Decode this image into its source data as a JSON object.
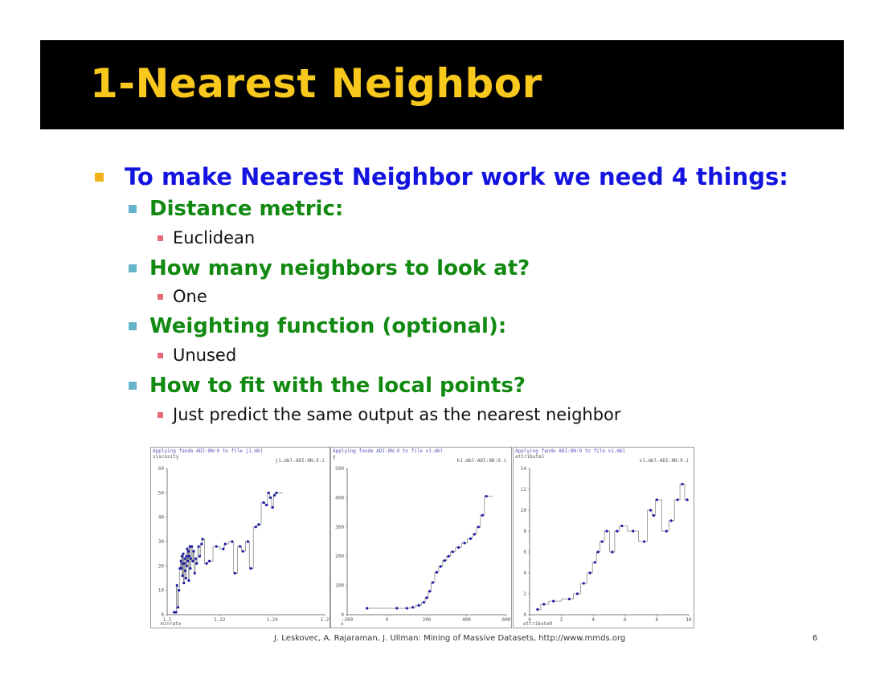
{
  "slide": {
    "title": "1-Nearest Neighbor",
    "main_bullet": "To make Nearest Neighbor work we need 4 things:",
    "items": [
      {
        "heading": "Distance metric:",
        "answer": "Euclidean"
      },
      {
        "heading": "How many neighbors to look at?",
        "answer": "One"
      },
      {
        "heading": "Weighting function (optional):",
        "answer": "Unused"
      },
      {
        "heading": "How to fit with the local points?",
        "answer": "Just predict the same output as the nearest neighbor"
      }
    ],
    "footer": {
      "source": "J. Leskovec, A. Rajaraman, J. Ullman: Mining of Massive Datasets, http://www.mmds.org",
      "page": "6"
    }
  },
  "colors": {
    "title_bg": "#000000",
    "title_text": "#f8c81c",
    "main_bullet": "#1414e0",
    "heading": "#128a12",
    "marker1": "#f2b21c",
    "marker2": "#66b4cc",
    "marker3": "#e86a78",
    "series_line": "#888888",
    "series_point": "#1a1aa8"
  },
  "chart_data": [
    {
      "type": "line",
      "title": "Applying fande ADI:8N:9 to file j1.mbl",
      "ylabel": "viscosity",
      "xlabel": "minrate",
      "legend": "j1.mbl-ADI:8N:9.i",
      "xlim": [
        1.2,
        1.28
      ],
      "ylim": [
        0,
        60
      ],
      "xticks": [
        "1.2",
        "1.22",
        "1.24",
        "1.2"
      ],
      "yticks": [
        "0",
        "10",
        "20",
        "30",
        "40",
        "50",
        "60"
      ],
      "x": [
        1.2035,
        1.2045,
        1.205,
        1.2055,
        1.206,
        1.2065,
        1.207,
        1.2072,
        1.2075,
        1.2078,
        1.208,
        1.2082,
        1.2085,
        1.2088,
        1.209,
        1.2092,
        1.2095,
        1.2098,
        1.21,
        1.2102,
        1.2105,
        1.2108,
        1.211,
        1.2112,
        1.2115,
        1.2118,
        1.212,
        1.2125,
        1.213,
        1.2135,
        1.214,
        1.2145,
        1.215,
        1.216,
        1.2165,
        1.2175,
        1.218,
        1.22,
        1.2215,
        1.225,
        1.2285,
        1.2295,
        1.233,
        1.2345,
        1.237,
        1.2385,
        1.241,
        1.2425,
        1.245,
        1.2465,
        1.249,
        1.2505,
        1.2515,
        1.2525,
        1.2535,
        1.2545,
        1.2555
      ],
      "y": [
        1,
        1,
        12,
        3,
        10,
        19,
        22,
        19,
        24,
        16,
        21,
        25,
        13,
        21,
        23,
        18,
        15,
        24,
        20,
        27,
        22,
        26,
        14,
        24,
        28,
        19,
        23,
        28,
        22,
        26,
        17,
        23,
        21,
        28,
        24,
        29,
        31,
        21,
        22,
        28,
        27,
        29,
        30,
        17,
        28,
        26,
        30,
        19,
        36,
        37,
        46,
        45,
        50,
        48,
        44,
        49,
        50
      ]
    },
    {
      "type": "line",
      "title": "Applying fande ADI:8N:9 to file x1.mbl",
      "ylabel": "y",
      "xlabel": "x",
      "legend": "k1.mbl-ADI:8N:9.i",
      "xlim": [
        -200,
        600
      ],
      "ylim": [
        0,
        500
      ],
      "xticks": [
        "-200",
        "0",
        "200",
        "400",
        "600"
      ],
      "yticks": [
        "0",
        "100",
        "200",
        "300",
        "400",
        "500"
      ],
      "x": [
        -100,
        50,
        100,
        130,
        160,
        185,
        200,
        215,
        230,
        250,
        270,
        290,
        310,
        330,
        360,
        390,
        420,
        440,
        460,
        480,
        500
      ],
      "y": [
        22,
        22,
        22,
        25,
        32,
        42,
        58,
        80,
        110,
        145,
        165,
        185,
        200,
        215,
        230,
        245,
        260,
        275,
        300,
        340,
        405
      ]
    },
    {
      "type": "line",
      "title": "Applying fande ADI:8N:9 to file x1.mbl",
      "ylabel": "attribute1",
      "xlabel": "attribute0",
      "legend": "x1.mbl-ADI:8N:9.i",
      "xlim": [
        0,
        10
      ],
      "ylim": [
        0,
        14
      ],
      "xticks": [
        "0",
        "2",
        "4",
        "6",
        "8",
        "10"
      ],
      "yticks": [
        "0",
        "2",
        "4",
        "6",
        "8",
        "10",
        "12",
        "14"
      ],
      "x": [
        0.5,
        0.9,
        1.5,
        2.5,
        3.0,
        3.4,
        3.8,
        4.1,
        4.3,
        4.55,
        4.85,
        5.2,
        5.5,
        5.8,
        6.5,
        7.2,
        7.6,
        7.8,
        8.0,
        8.6,
        8.9,
        9.3,
        9.6,
        9.9
      ],
      "y": [
        0.5,
        1,
        1.3,
        1.5,
        2,
        3,
        4,
        5,
        6,
        7,
        8,
        6,
        8,
        8.5,
        8,
        7,
        10,
        9.5,
        11,
        8,
        9,
        11,
        12.5,
        11
      ]
    }
  ]
}
